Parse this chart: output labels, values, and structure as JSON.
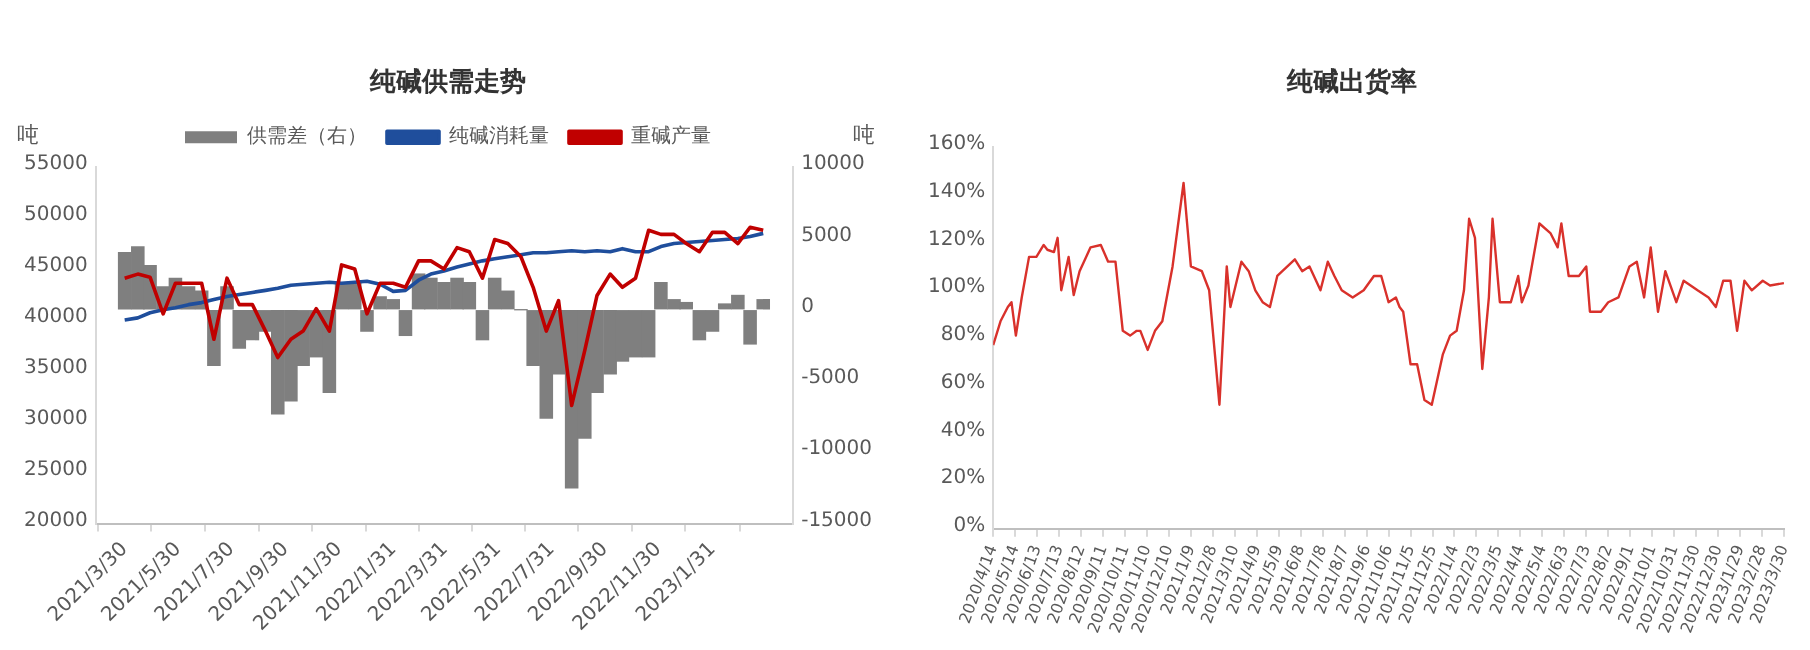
{
  "chart_data": [
    {
      "type": "line",
      "title": "纯碱供需走势",
      "ylabel": "吨",
      "y2label": "吨",
      "legend": "top",
      "x": [
        "2021-03-30",
        "2021-04-14",
        "2021-04-28",
        "2021-05-13",
        "2021-05-27",
        "2021-06-11",
        "2021-06-26",
        "2021-07-10",
        "2021-07-25",
        "2021-08-08",
        "2021-08-23",
        "2021-09-07",
        "2021-09-21",
        "2021-10-06",
        "2021-10-20",
        "2021-11-04",
        "2021-11-19",
        "2021-12-03",
        "2021-12-18",
        "2022-01-01",
        "2022-01-16",
        "2022-01-31",
        "2022-02-14",
        "2022-03-01",
        "2022-03-15",
        "2022-03-30",
        "2022-04-14",
        "2022-04-28",
        "2022-05-13",
        "2022-05-27",
        "2022-06-11",
        "2022-06-26",
        "2022-07-10",
        "2022-07-25",
        "2022-08-08",
        "2022-08-23",
        "2022-09-07",
        "2022-09-21",
        "2022-10-06",
        "2022-10-20",
        "2022-11-04",
        "2022-11-19",
        "2022-12-03",
        "2022-12-18",
        "2023-01-01",
        "2023-01-16",
        "2023-01-31",
        "2023-02-14",
        "2023-03-01",
        "2023-03-15",
        "2023-03-30"
      ],
      "xlim": [
        "2021-03-30",
        "2023-03-31"
      ],
      "xticks": [
        {
          "value": "2021-03-30",
          "label": "2021/3/30"
        },
        {
          "value": "2021-05-30",
          "label": "2021/5/30"
        },
        {
          "value": "2021-07-30",
          "label": "2021/7/30"
        },
        {
          "value": "2021-09-30",
          "label": "2021/9/30"
        },
        {
          "value": "2021-11-30",
          "label": "2021/11/30"
        },
        {
          "value": "2022-01-31",
          "label": "2022/1/31"
        },
        {
          "value": "2022-03-31",
          "label": "2022/3/31"
        },
        {
          "value": "2022-05-31",
          "label": "2022/5/31"
        },
        {
          "value": "2022-07-31",
          "label": "2022/7/31"
        },
        {
          "value": "2022-09-30",
          "label": "2022/9/30"
        },
        {
          "value": "2022-11-30",
          "label": "2022/11/30"
        },
        {
          "value": "2023-01-31",
          "label": "2023/1/31"
        }
      ],
      "ylim": [
        20000,
        55000
      ],
      "yticks": [
        20000,
        25000,
        30000,
        35000,
        40000,
        45000,
        50000,
        55000
      ],
      "y2lim": [
        -15000,
        10000
      ],
      "y2ticks": [
        -15000,
        -10000,
        -5000,
        0,
        5000,
        10000
      ],
      "series": [
        {
          "name": "供需差（右）",
          "type": "bar",
          "axis": "y2",
          "color": "#7f7f7f",
          "values": [
            4000,
            4400,
            3100,
            1600,
            2200,
            1600,
            1300,
            -3900,
            1600,
            -2700,
            -2100,
            -1500,
            -7300,
            -6400,
            -3900,
            -3300,
            -5800,
            1900,
            1900,
            -1500,
            900,
            700,
            -1800,
            2500,
            2200,
            1900,
            2200,
            1900,
            -2100,
            2200,
            1300,
            0,
            -3900,
            -7600,
            -4500,
            -12500,
            -9000,
            -5800,
            -4500,
            -3600,
            -3300,
            -3300,
            1900,
            700,
            500,
            -2100,
            -1500,
            400,
            1000,
            -2400,
            700
          ]
        },
        {
          "name": "纯碱消耗量",
          "type": "line",
          "color": "#1f4e9c",
          "values": [
            40000,
            40200,
            40700,
            41000,
            41200,
            41500,
            41700,
            42000,
            42300,
            42500,
            42700,
            42900,
            43100,
            43400,
            43500,
            43600,
            43700,
            43600,
            43700,
            43800,
            43500,
            42800,
            42900,
            43900,
            44500,
            44800,
            45200,
            45500,
            45800,
            46000,
            46200,
            46400,
            46600,
            46600,
            46700,
            46800,
            46700,
            46800,
            46700,
            47000,
            46700,
            46700,
            47200,
            47500,
            47600,
            47700,
            47800,
            47900,
            48000,
            48200,
            48500
          ]
        },
        {
          "name": "重碱产量",
          "type": "line",
          "color": "#c00000",
          "values": [
            44100,
            44500,
            44200,
            40600,
            43600,
            43600,
            43600,
            38100,
            44100,
            41500,
            41500,
            38900,
            36300,
            38100,
            38900,
            41100,
            38900,
            45400,
            45000,
            40600,
            43600,
            43600,
            43200,
            45800,
            45800,
            45000,
            47100,
            46700,
            44100,
            47900,
            47500,
            46200,
            43200,
            38900,
            41900,
            31600,
            37000,
            42400,
            44500,
            43200,
            44100,
            48800,
            48400,
            48400,
            47500,
            46700,
            48600,
            48600,
            47500,
            49100,
            48800
          ]
        }
      ]
    },
    {
      "type": "line",
      "title": "纯碱出货率",
      "x": [
        "2020-04-14",
        "2020-04-24",
        "2020-05-04",
        "2020-05-09",
        "2020-05-15",
        "2020-05-23",
        "2020-06-02",
        "2020-06-12",
        "2020-06-22",
        "2020-06-27",
        "2020-07-06",
        "2020-07-11",
        "2020-07-16",
        "2020-07-26",
        "2020-08-02",
        "2020-08-10",
        "2020-08-25",
        "2020-09-08",
        "2020-09-18",
        "2020-09-28",
        "2020-10-08",
        "2020-10-18",
        "2020-10-27",
        "2020-11-01",
        "2020-11-11",
        "2020-11-21",
        "2020-12-01",
        "2020-12-15",
        "2020-12-30",
        "2021-01-09",
        "2021-01-24",
        "2021-02-03",
        "2021-02-17",
        "2021-02-27",
        "2021-03-04",
        "2021-03-19",
        "2021-03-29",
        "2021-04-07",
        "2021-04-17",
        "2021-04-27",
        "2021-05-07",
        "2021-05-31",
        "2021-06-10",
        "2021-06-20",
        "2021-07-05",
        "2021-07-15",
        "2021-07-24",
        "2021-08-03",
        "2021-08-18",
        "2021-09-02",
        "2021-09-16",
        "2021-09-26",
        "2021-10-06",
        "2021-10-16",
        "2021-10-21",
        "2021-10-26",
        "2021-11-05",
        "2021-11-14",
        "2021-11-24",
        "2021-12-04",
        "2021-12-19",
        "2021-12-29",
        "2022-01-07",
        "2022-01-17",
        "2022-01-24",
        "2022-02-01",
        "2022-02-11",
        "2022-02-20",
        "2022-02-25",
        "2022-03-07",
        "2022-03-22",
        "2022-04-01",
        "2022-04-06",
        "2022-04-15",
        "2022-04-30",
        "2022-05-15",
        "2022-05-25",
        "2022-05-30",
        "2022-06-09",
        "2022-06-23",
        "2022-07-03",
        "2022-07-08",
        "2022-07-23",
        "2022-08-02",
        "2022-08-16",
        "2022-08-31",
        "2022-09-10",
        "2022-09-20",
        "2022-09-29",
        "2022-10-09",
        "2022-10-19",
        "2022-11-03",
        "2022-11-13",
        "2022-12-02",
        "2022-12-17",
        "2022-12-27",
        "2023-01-06",
        "2023-01-16",
        "2023-01-25",
        "2023-02-04",
        "2023-02-14",
        "2023-03-01",
        "2023-03-11",
        "2023-03-30"
      ],
      "xlim": [
        "2020-04-14",
        "2023-03-30"
      ],
      "xticks": [
        {
          "value": "2020-04-14",
          "label": "2020/4/14"
        },
        {
          "value": "2020-05-14",
          "label": "2020/5/14"
        },
        {
          "value": "2020-06-13",
          "label": "2020/6/13"
        },
        {
          "value": "2020-07-13",
          "label": "2020/7/13"
        },
        {
          "value": "2020-08-12",
          "label": "2020/8/12"
        },
        {
          "value": "2020-09-11",
          "label": "2020/9/11"
        },
        {
          "value": "2020-10-11",
          "label": "2020/10/11"
        },
        {
          "value": "2020-11-10",
          "label": "2020/11/10"
        },
        {
          "value": "2020-12-10",
          "label": "2020/12/10"
        },
        {
          "value": "2021-01-09",
          "label": "2021/1/9"
        },
        {
          "value": "2021-02-08",
          "label": "2021/2/8"
        },
        {
          "value": "2021-03-10",
          "label": "2021/3/10"
        },
        {
          "value": "2021-04-09",
          "label": "2021/4/9"
        },
        {
          "value": "2021-05-09",
          "label": "2021/5/9"
        },
        {
          "value": "2021-06-08",
          "label": "2021/6/8"
        },
        {
          "value": "2021-07-08",
          "label": "2021/7/8"
        },
        {
          "value": "2021-08-07",
          "label": "2021/8/7"
        },
        {
          "value": "2021-09-06",
          "label": "2021/9/6"
        },
        {
          "value": "2021-10-06",
          "label": "2021/10/6"
        },
        {
          "value": "2021-11-05",
          "label": "2021/11/5"
        },
        {
          "value": "2021-12-05",
          "label": "2021/12/5"
        },
        {
          "value": "2022-01-04",
          "label": "2022/1/4"
        },
        {
          "value": "2022-02-03",
          "label": "2022/2/3"
        },
        {
          "value": "2022-03-05",
          "label": "2022/3/5"
        },
        {
          "value": "2022-04-04",
          "label": "2022/4/4"
        },
        {
          "value": "2022-05-04",
          "label": "2022/5/4"
        },
        {
          "value": "2022-06-03",
          "label": "2022/6/3"
        },
        {
          "value": "2022-07-03",
          "label": "2022/7/3"
        },
        {
          "value": "2022-08-02",
          "label": "2022/8/2"
        },
        {
          "value": "2022-09-01",
          "label": "2022/9/1"
        },
        {
          "value": "2022-10-01",
          "label": "2022/10/1"
        },
        {
          "value": "2022-10-31",
          "label": "2022/10/31"
        },
        {
          "value": "2022-11-30",
          "label": "2022/11/30"
        },
        {
          "value": "2022-12-30",
          "label": "2022/12/30"
        },
        {
          "value": "2023-01-29",
          "label": "2023/1/29"
        },
        {
          "value": "2023-02-28",
          "label": "2023/2/28"
        },
        {
          "value": "2023-03-30",
          "label": "2023/3/30"
        }
      ],
      "ylim": [
        0,
        160
      ],
      "yticks": [
        {
          "value": 0,
          "label": "0%"
        },
        {
          "value": 20,
          "label": "20%"
        },
        {
          "value": 40,
          "label": "40%"
        },
        {
          "value": 60,
          "label": "60%"
        },
        {
          "value": 80,
          "label": "80%"
        },
        {
          "value": 100,
          "label": "100%"
        },
        {
          "value": 120,
          "label": "120%"
        },
        {
          "value": 140,
          "label": "140%"
        },
        {
          "value": 160,
          "label": "160%"
        }
      ],
      "series": [
        {
          "color": "#d9312b",
          "values": [
            77,
            87,
            93,
            95,
            81,
            97,
            114,
            114,
            119,
            117,
            116,
            122,
            100,
            114,
            98,
            108,
            118,
            119,
            112,
            112,
            83,
            81,
            83,
            83,
            75,
            83,
            87,
            110,
            145,
            110,
            108,
            100,
            52,
            110,
            93,
            112,
            108,
            100,
            95,
            93,
            106,
            113,
            108,
            110,
            100,
            112,
            106,
            100,
            97,
            100,
            106,
            106,
            95,
            97,
            93,
            91,
            69,
            69,
            54,
            52,
            73,
            81,
            83,
            100,
            130,
            122,
            67,
            97,
            130,
            95,
            95,
            106,
            95,
            102,
            128,
            124,
            118,
            128,
            106,
            106,
            110,
            91,
            91,
            95,
            97,
            110,
            112,
            97,
            118,
            91,
            108,
            95,
            104,
            100,
            97,
            93,
            104,
            104,
            83,
            104,
            100,
            104,
            102,
            103
          ]
        }
      ]
    }
  ]
}
